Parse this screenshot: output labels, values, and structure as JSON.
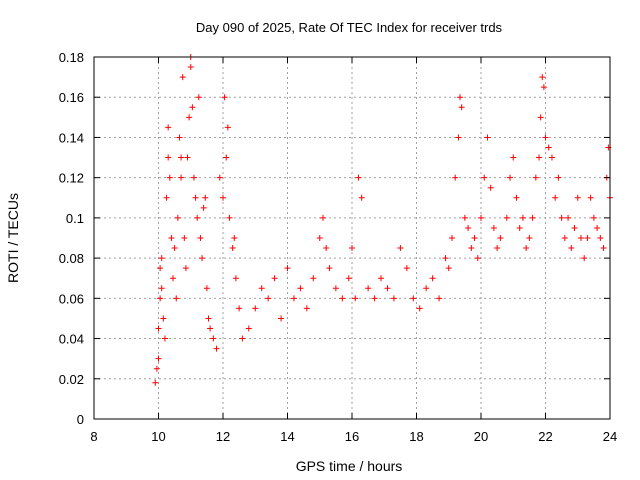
{
  "chart_data": {
    "type": "scatter",
    "title": "Day 090 of 2025, Rate Of TEC Index for receiver trds",
    "xlabel": "GPS time / hours",
    "ylabel": "ROTI / TECUs",
    "xlim": [
      8,
      24
    ],
    "ylim": [
      0,
      0.18
    ],
    "xticks": [
      8,
      10,
      12,
      14,
      16,
      18,
      20,
      22,
      24
    ],
    "xtick_labels": [
      "8",
      "10",
      "12",
      "14",
      "16",
      "18",
      "20",
      "22",
      "24"
    ],
    "yticks": [
      0,
      0.02,
      0.04,
      0.06,
      0.08,
      0.1,
      0.12,
      0.14,
      0.16,
      0.18
    ],
    "ytick_labels": [
      "0",
      "0.02",
      "0.04",
      "0.06",
      "0.08",
      "0.1",
      "0.12",
      "0.14",
      "0.16",
      "0.18"
    ],
    "grid": true,
    "marker": "+",
    "color": "#ff0000",
    "series": [
      {
        "points": [
          [
            9.9,
            0.018
          ],
          [
            9.95,
            0.025
          ],
          [
            10.0,
            0.03
          ],
          [
            10.0,
            0.045
          ],
          [
            10.05,
            0.06
          ],
          [
            10.05,
            0.075
          ],
          [
            10.1,
            0.065
          ],
          [
            10.1,
            0.08
          ],
          [
            10.15,
            0.05
          ],
          [
            10.2,
            0.04
          ],
          [
            10.25,
            0.11
          ],
          [
            10.3,
            0.145
          ],
          [
            10.3,
            0.13
          ],
          [
            10.35,
            0.12
          ],
          [
            10.4,
            0.09
          ],
          [
            10.45,
            0.07
          ],
          [
            10.5,
            0.085
          ],
          [
            10.55,
            0.06
          ],
          [
            10.6,
            0.1
          ],
          [
            10.65,
            0.14
          ],
          [
            10.7,
            0.13
          ],
          [
            10.7,
            0.12
          ],
          [
            10.75,
            0.17
          ],
          [
            10.8,
            0.09
          ],
          [
            10.85,
            0.075
          ],
          [
            10.9,
            0.13
          ],
          [
            10.95,
            0.15
          ],
          [
            11.0,
            0.18
          ],
          [
            11.0,
            0.175
          ],
          [
            11.05,
            0.155
          ],
          [
            11.1,
            0.12
          ],
          [
            11.15,
            0.11
          ],
          [
            11.2,
            0.1
          ],
          [
            11.25,
            0.16
          ],
          [
            11.3,
            0.09
          ],
          [
            11.35,
            0.08
          ],
          [
            11.4,
            0.105
          ],
          [
            11.45,
            0.11
          ],
          [
            11.5,
            0.065
          ],
          [
            11.55,
            0.05
          ],
          [
            11.6,
            0.045
          ],
          [
            11.7,
            0.04
          ],
          [
            11.8,
            0.035
          ],
          [
            11.9,
            0.12
          ],
          [
            12.0,
            0.11
          ],
          [
            12.05,
            0.16
          ],
          [
            12.1,
            0.13
          ],
          [
            12.15,
            0.145
          ],
          [
            12.2,
            0.1
          ],
          [
            12.3,
            0.085
          ],
          [
            12.35,
            0.09
          ],
          [
            12.4,
            0.07
          ],
          [
            12.5,
            0.055
          ],
          [
            12.6,
            0.04
          ],
          [
            12.8,
            0.045
          ],
          [
            13.0,
            0.055
          ],
          [
            13.2,
            0.065
          ],
          [
            13.4,
            0.06
          ],
          [
            13.6,
            0.07
          ],
          [
            13.8,
            0.05
          ],
          [
            14.0,
            0.075
          ],
          [
            14.2,
            0.06
          ],
          [
            14.4,
            0.065
          ],
          [
            14.6,
            0.055
          ],
          [
            14.8,
            0.07
          ],
          [
            15.0,
            0.09
          ],
          [
            15.1,
            0.1
          ],
          [
            15.2,
            0.085
          ],
          [
            15.3,
            0.075
          ],
          [
            15.5,
            0.065
          ],
          [
            15.7,
            0.06
          ],
          [
            15.9,
            0.07
          ],
          [
            16.0,
            0.085
          ],
          [
            16.1,
            0.06
          ],
          [
            16.2,
            0.12
          ],
          [
            16.3,
            0.11
          ],
          [
            16.5,
            0.065
          ],
          [
            16.7,
            0.06
          ],
          [
            16.9,
            0.07
          ],
          [
            17.1,
            0.065
          ],
          [
            17.3,
            0.06
          ],
          [
            17.5,
            0.085
          ],
          [
            17.7,
            0.075
          ],
          [
            17.9,
            0.06
          ],
          [
            18.1,
            0.055
          ],
          [
            18.3,
            0.065
          ],
          [
            18.5,
            0.07
          ],
          [
            18.7,
            0.06
          ],
          [
            18.9,
            0.08
          ],
          [
            19.0,
            0.075
          ],
          [
            19.1,
            0.09
          ],
          [
            19.2,
            0.12
          ],
          [
            19.3,
            0.14
          ],
          [
            19.35,
            0.16
          ],
          [
            19.4,
            0.155
          ],
          [
            19.5,
            0.1
          ],
          [
            19.6,
            0.095
          ],
          [
            19.7,
            0.085
          ],
          [
            19.8,
            0.09
          ],
          [
            19.9,
            0.08
          ],
          [
            20.0,
            0.1
          ],
          [
            20.1,
            0.12
          ],
          [
            20.2,
            0.14
          ],
          [
            20.3,
            0.115
          ],
          [
            20.4,
            0.095
          ],
          [
            20.5,
            0.085
          ],
          [
            20.6,
            0.09
          ],
          [
            20.8,
            0.1
          ],
          [
            20.9,
            0.12
          ],
          [
            21.0,
            0.13
          ],
          [
            21.1,
            0.11
          ],
          [
            21.2,
            0.095
          ],
          [
            21.3,
            0.1
          ],
          [
            21.4,
            0.085
          ],
          [
            21.5,
            0.09
          ],
          [
            21.6,
            0.1
          ],
          [
            21.7,
            0.12
          ],
          [
            21.8,
            0.13
          ],
          [
            21.85,
            0.15
          ],
          [
            21.9,
            0.17
          ],
          [
            21.95,
            0.165
          ],
          [
            22.0,
            0.14
          ],
          [
            22.1,
            0.135
          ],
          [
            22.2,
            0.13
          ],
          [
            22.3,
            0.11
          ],
          [
            22.4,
            0.12
          ],
          [
            22.5,
            0.1
          ],
          [
            22.6,
            0.09
          ],
          [
            22.7,
            0.1
          ],
          [
            22.8,
            0.085
          ],
          [
            22.9,
            0.095
          ],
          [
            23.0,
            0.11
          ],
          [
            23.1,
            0.09
          ],
          [
            23.2,
            0.08
          ],
          [
            23.3,
            0.09
          ],
          [
            23.4,
            0.11
          ],
          [
            23.5,
            0.1
          ],
          [
            23.6,
            0.095
          ],
          [
            23.7,
            0.09
          ],
          [
            23.8,
            0.085
          ],
          [
            23.9,
            0.12
          ],
          [
            23.95,
            0.135
          ],
          [
            24.0,
            0.11
          ]
        ]
      }
    ]
  }
}
